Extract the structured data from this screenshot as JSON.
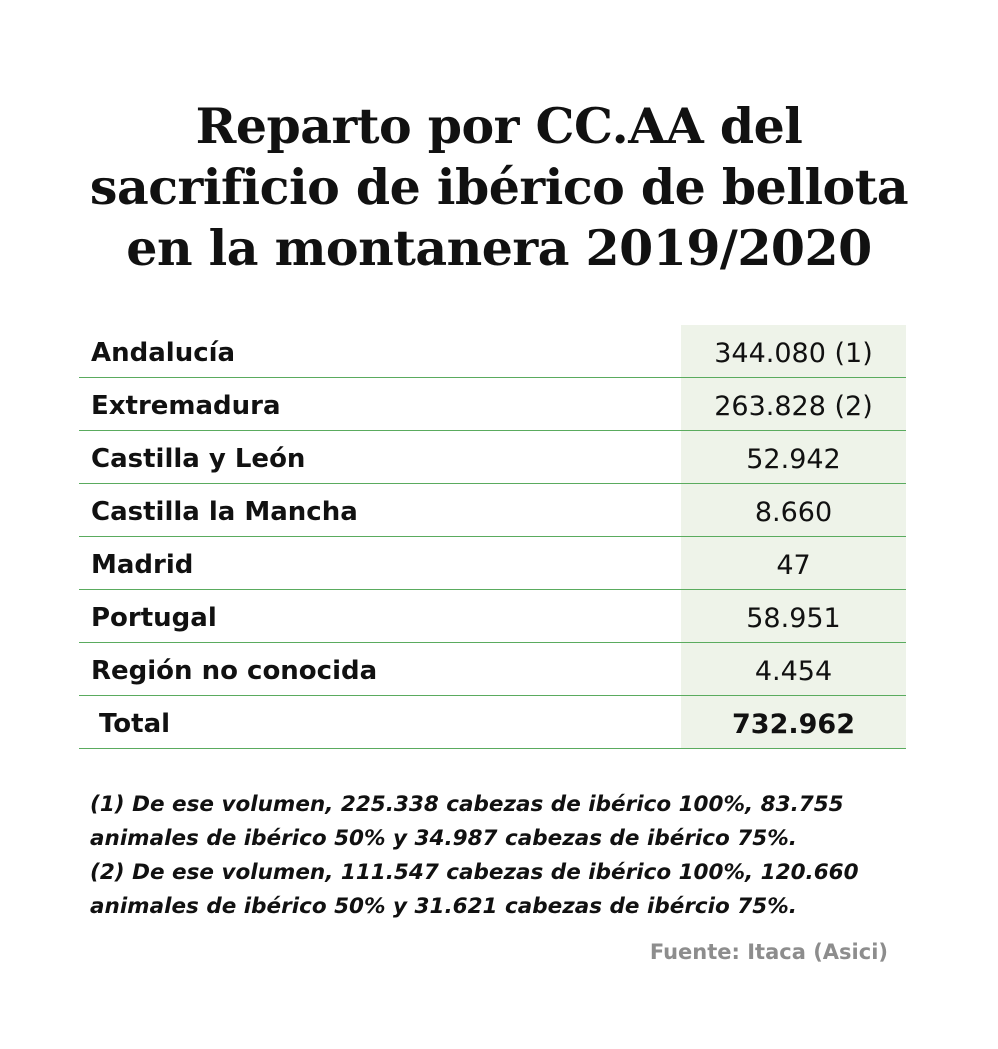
{
  "title_lines": [
    "Reparto por CC.AA del",
    "sacrificio de ibérico de bellota",
    "en la montanera 2019/2020"
  ],
  "chart_data": {
    "type": "table",
    "title": "Reparto por CC.AA del sacrificio de ibérico de bellota en la montanera 2019/2020",
    "rows": [
      {
        "name": "Andalucía",
        "value": "344.080 (1)"
      },
      {
        "name": "Extremadura",
        "value": "263.828 (2)"
      },
      {
        "name": "Castilla y León",
        "value": "52.942"
      },
      {
        "name": "Castilla la Mancha",
        "value": "8.660"
      },
      {
        "name": "Madrid",
        "value": "47"
      },
      {
        "name": "Portugal",
        "value": "58.951"
      },
      {
        "name": "Región no conocida",
        "value": "4.454"
      }
    ],
    "total": {
      "name": "Total",
      "value": "732.962"
    }
  },
  "notes": [
    "(1) De ese volumen, 225.338 cabezas de ibérico 100%, 83.755",
    "animales de ibérico 50% y 34.987 cabezas de ibérico 75%.",
    "(2) De ese volumen, 111.547 cabezas de ibérico 100%, 120.660",
    "animales de ibérico 50% y 31.621 cabezas de ibércio 75%."
  ],
  "source": "Fuente: Itaca (Asici)",
  "colors": {
    "rule": "#5aab5e",
    "value_column_bg": "#eef3e9",
    "source_text": "#8d8d8d"
  }
}
